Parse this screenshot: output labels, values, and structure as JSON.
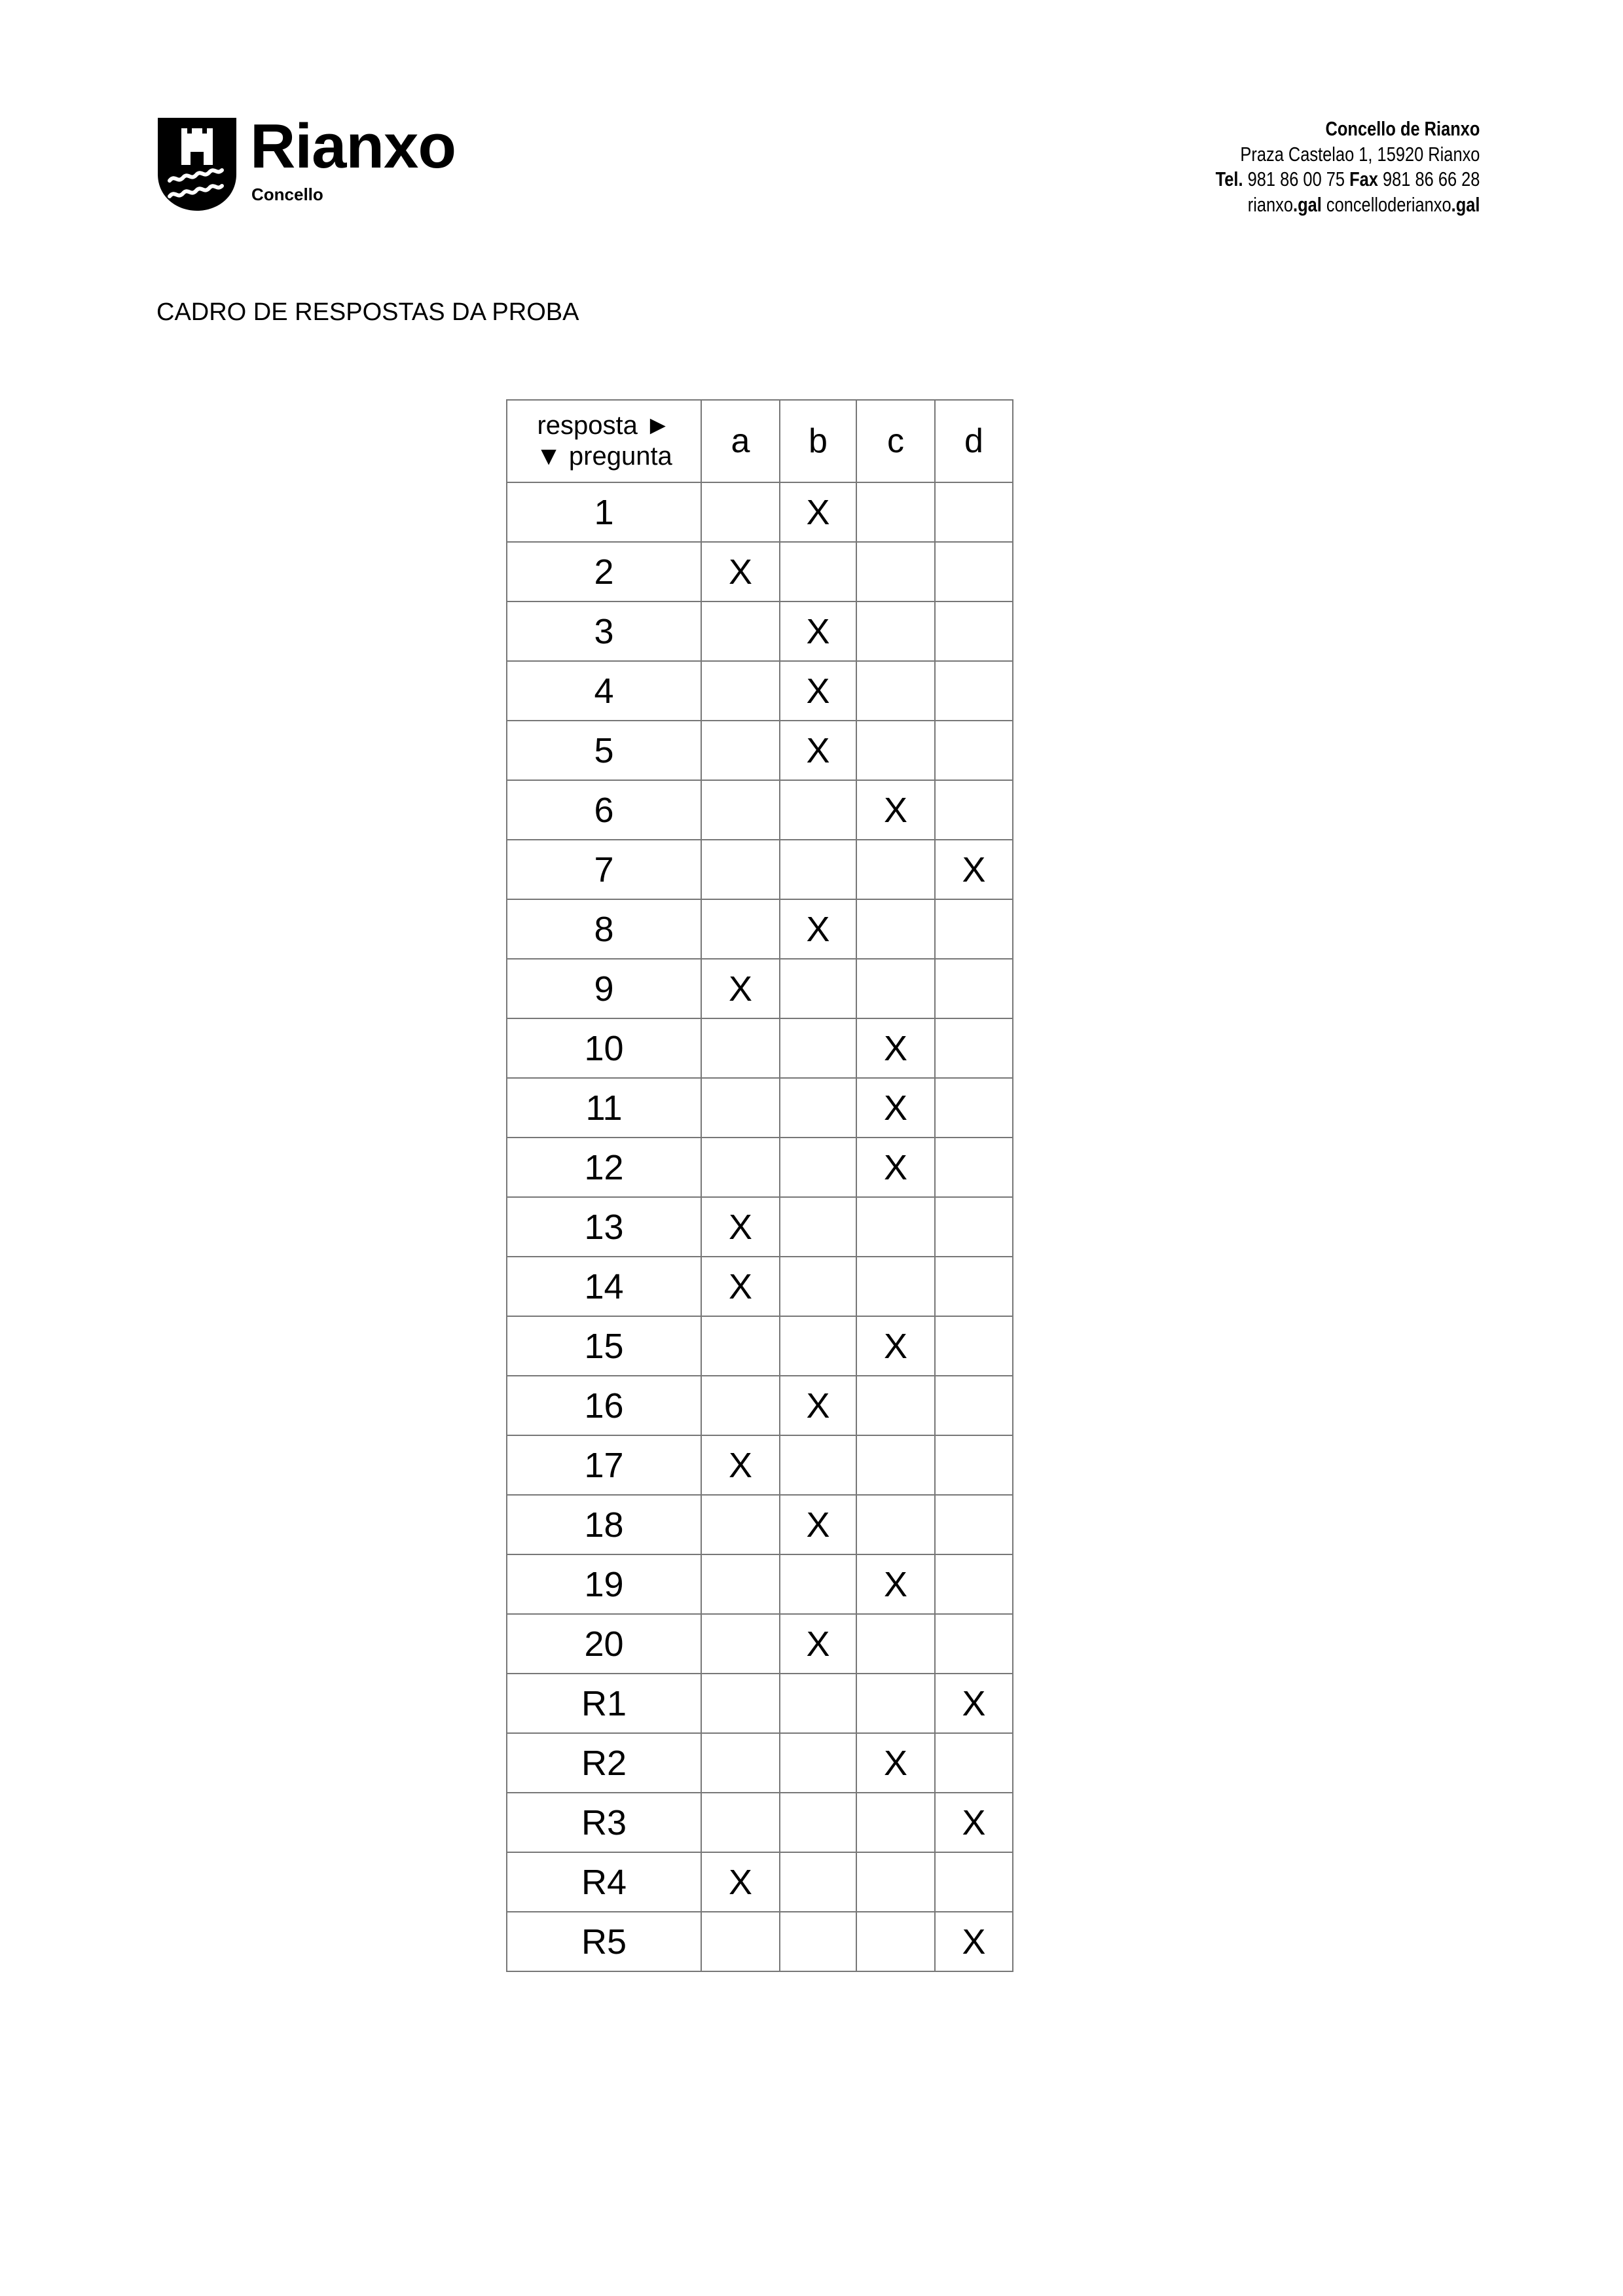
{
  "header": {
    "logo": {
      "name": "Rianxo",
      "subtitle": "Concello"
    },
    "contact": {
      "org": "Concello de Rianxo",
      "address": "Praza Castelao 1, 15920 Rianxo",
      "tel_label": "Tel.",
      "tel": "981 86 00 75",
      "fax_label": "Fax",
      "fax": "981 86 66 28",
      "web1_a": "rianxo",
      "web1_b": ".gal",
      "web2_a": "concelloderianxo",
      "web2_b": ".gal"
    }
  },
  "title": "CADRO DE RESPOSTAS DA PROBA",
  "table": {
    "header_top": "resposta ►",
    "header_bottom": "▼ pregunta",
    "options": [
      "a",
      "b",
      "c",
      "d"
    ],
    "mark": "X",
    "rows": [
      {
        "q": "1",
        "answer": "b"
      },
      {
        "q": "2",
        "answer": "a"
      },
      {
        "q": "3",
        "answer": "b"
      },
      {
        "q": "4",
        "answer": "b"
      },
      {
        "q": "5",
        "answer": "b"
      },
      {
        "q": "6",
        "answer": "c"
      },
      {
        "q": "7",
        "answer": "d"
      },
      {
        "q": "8",
        "answer": "b"
      },
      {
        "q": "9",
        "answer": "a"
      },
      {
        "q": "10",
        "answer": "c"
      },
      {
        "q": "11",
        "answer": "c"
      },
      {
        "q": "12",
        "answer": "c"
      },
      {
        "q": "13",
        "answer": "a"
      },
      {
        "q": "14",
        "answer": "a"
      },
      {
        "q": "15",
        "answer": "c"
      },
      {
        "q": "16",
        "answer": "b"
      },
      {
        "q": "17",
        "answer": "a"
      },
      {
        "q": "18",
        "answer": "b"
      },
      {
        "q": "19",
        "answer": "c"
      },
      {
        "q": "20",
        "answer": "b"
      },
      {
        "q": "R1",
        "answer": "d"
      },
      {
        "q": "R2",
        "answer": "c"
      },
      {
        "q": "R3",
        "answer": "d"
      },
      {
        "q": "R4",
        "answer": "a"
      },
      {
        "q": "R5",
        "answer": "d"
      }
    ]
  }
}
